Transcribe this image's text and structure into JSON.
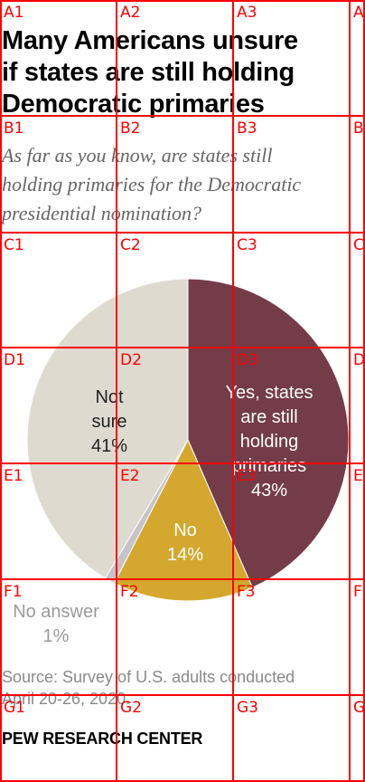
{
  "title_lines": [
    "Many Americans unsure",
    "if states are still holding",
    "Democratic primaries"
  ],
  "subtitle_lines": [
    "As far as you know, are states still",
    "holding primaries for the Democratic",
    "presidential nomination?"
  ],
  "source_lines": [
    "Source: Survey of U.S. adults conducted",
    "April 20-26, 2020."
  ],
  "brand": "PEW RESEARCH CENTER",
  "grid_labels": {
    "A1": "A1",
    "A2": "A2",
    "A3": "A3",
    "A4": "A",
    "B1": "B1",
    "B2": "B2",
    "B3": "B3",
    "B4": "B",
    "C1": "C1",
    "C2": "C2",
    "C3": "C3",
    "C4": "C",
    "D1": "D1",
    "D2": "D2",
    "D3": "D3",
    "D4": "D",
    "E1": "E1",
    "E2": "E2",
    "E3": "E3",
    "E4": "E",
    "F1": "F1",
    "F2": "F2",
    "F3": "F3",
    "F4": "F",
    "G1": "G1",
    "G2": "G2",
    "G3": "G3",
    "G4": "G"
  },
  "colors": {
    "yes": "#733c48",
    "no": "#d4a82e",
    "no_answer": "#c6c3ca",
    "not_sure": "#dedad0",
    "grid": "#ff0000"
  },
  "chart_data": {
    "type": "pie",
    "slices": [
      {
        "label_lines": [
          "Yes, states",
          "are still",
          "holding",
          "primaries"
        ],
        "value_label": "43%",
        "value": 43,
        "color_key": "yes"
      },
      {
        "label_lines": [
          "No"
        ],
        "value_label": "14%",
        "value": 14,
        "color_key": "no"
      },
      {
        "label_lines": [
          "No answer"
        ],
        "value_label": "1%",
        "value": 1,
        "color_key": "no_answer"
      },
      {
        "label_lines": [
          "Not",
          "sure"
        ],
        "value_label": "41%",
        "value": 41,
        "color_key": "not_sure"
      }
    ]
  }
}
